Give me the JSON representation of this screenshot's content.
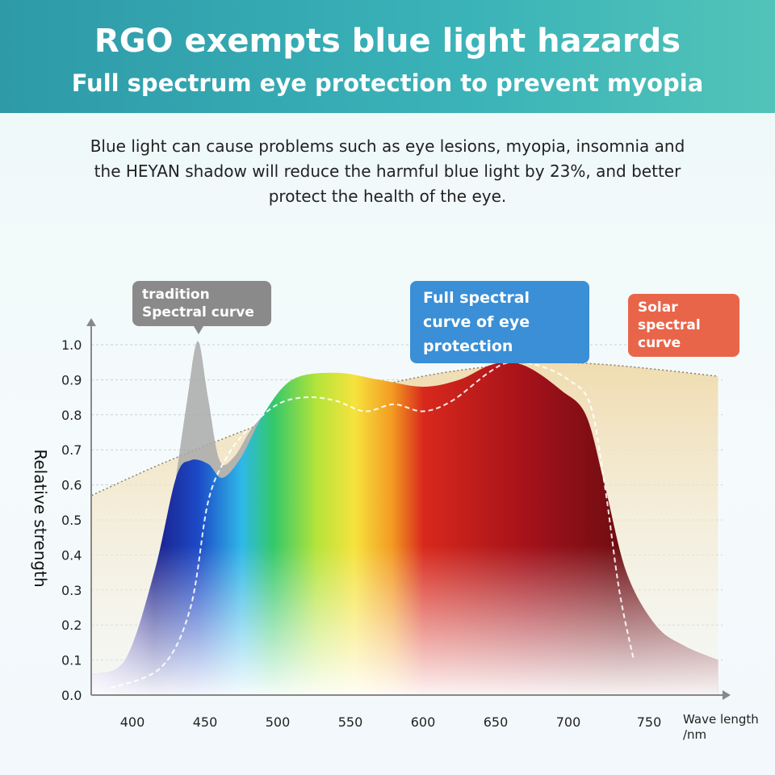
{
  "header": {
    "title": "RGO exempts blue light hazards",
    "subtitle": "Full spectrum eye protection to prevent myopia"
  },
  "description": "Blue light can cause problems such as eye lesions, myopia, insomnia and the HEYAN shadow will reduce the harmful blue light by 23%, and better protect the health of the eye.",
  "callouts": {
    "traditional": "tradition Spectral curve",
    "full": "Full spectral curve of eye protection",
    "solar": "Solar spectral curve"
  },
  "colors": {
    "traditional": "#8a8a8a",
    "full": "#3a8fd6",
    "solar": "#e9654a"
  },
  "chart_data": {
    "type": "area",
    "xlabel": "Wave length /nm",
    "ylabel": "Relative strength",
    "xlim": [
      372,
      803
    ],
    "ylim": [
      0,
      1.0
    ],
    "xticks": [
      400,
      450,
      500,
      550,
      600,
      650,
      700,
      750
    ],
    "yticks": [
      "0.0",
      "0.1",
      "0.2",
      "0.3",
      "0.4",
      "0.5",
      "0.6",
      "0.7",
      "0.8",
      "0.9",
      "1.0"
    ],
    "series": [
      {
        "name": "Solar spectral curve",
        "x": [
          372,
          420,
          480,
          540,
          600,
          650,
          680,
          720,
          760,
          803
        ],
        "y": [
          0.57,
          0.66,
          0.76,
          0.85,
          0.91,
          0.94,
          0.95,
          0.945,
          0.93,
          0.91
        ]
      },
      {
        "name": "Full spectral curve of eye protection",
        "x": [
          372,
          395,
          415,
          430,
          440,
          452,
          462,
          475,
          490,
          510,
          540,
          570,
          600,
          625,
          645,
          660,
          675,
          695,
          712,
          725,
          740,
          760,
          780,
          803
        ],
        "y": [
          0.06,
          0.1,
          0.35,
          0.62,
          0.67,
          0.66,
          0.62,
          0.68,
          0.8,
          0.9,
          0.92,
          0.9,
          0.88,
          0.9,
          0.94,
          0.95,
          0.93,
          0.87,
          0.8,
          0.6,
          0.35,
          0.2,
          0.14,
          0.1
        ]
      },
      {
        "name": "tradition Spectral curve",
        "x": [
          430,
          438,
          445,
          452,
          460,
          470,
          482,
          495
        ],
        "y": [
          0.62,
          0.85,
          1.01,
          0.85,
          0.67,
          0.68,
          0.76,
          0.82
        ]
      },
      {
        "name": "Eye protection (dashed)",
        "x": [
          385,
          420,
          440,
          452,
          465,
          480,
          500,
          520,
          540,
          560,
          580,
          600,
          620,
          645,
          660,
          680,
          700,
          715,
          725,
          735,
          745
        ],
        "y": [
          0.02,
          0.08,
          0.25,
          0.55,
          0.68,
          0.76,
          0.83,
          0.85,
          0.84,
          0.81,
          0.83,
          0.81,
          0.84,
          0.92,
          0.95,
          0.94,
          0.9,
          0.83,
          0.6,
          0.3,
          0.1
        ]
      }
    ]
  }
}
